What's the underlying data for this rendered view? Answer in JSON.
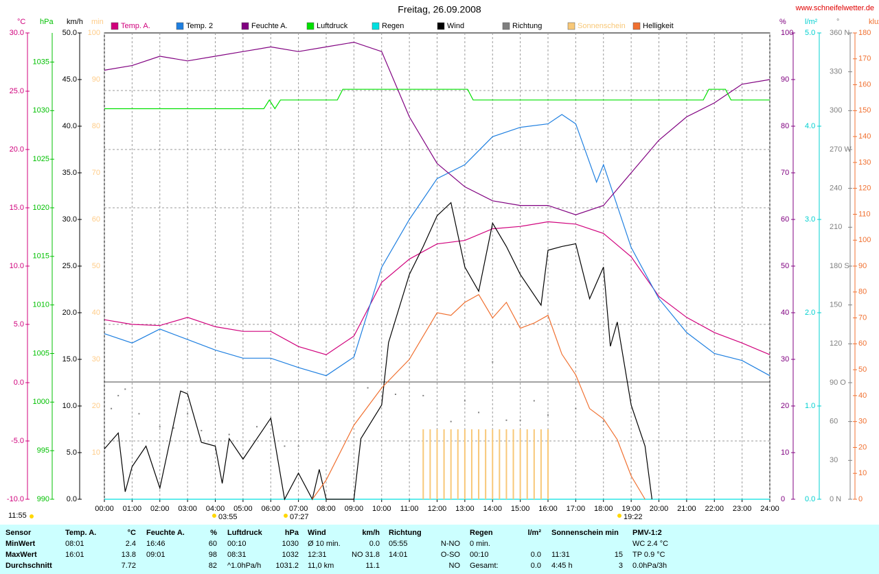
{
  "chart_data": {
    "type": "line",
    "title": "Freitag, 26.09.2008",
    "source": "www.schneifelwetter.de",
    "xlim": [
      0,
      24
    ],
    "xticks": [
      {
        "value": 0,
        "label": "00:00"
      },
      {
        "value": 1,
        "label": "01:00"
      },
      {
        "value": 2,
        "label": "02:00"
      },
      {
        "value": 3,
        "label": "03:00"
      },
      {
        "value": 4,
        "label": "04:00"
      },
      {
        "value": 5,
        "label": "05:00"
      },
      {
        "value": 6,
        "label": "06:00"
      },
      {
        "value": 7,
        "label": "07:00"
      },
      {
        "value": 8,
        "label": "08:00"
      },
      {
        "value": 9,
        "label": "09:00"
      },
      {
        "value": 10,
        "label": "10:00"
      },
      {
        "value": 11,
        "label": "11:00"
      },
      {
        "value": 12,
        "label": "12:00"
      },
      {
        "value": 13,
        "label": "13:00"
      },
      {
        "value": 14,
        "label": "14:00"
      },
      {
        "value": 15,
        "label": "15:00"
      },
      {
        "value": 16,
        "label": "16:00"
      },
      {
        "value": 17,
        "label": "17:00"
      },
      {
        "value": 18,
        "label": "18:00"
      },
      {
        "value": 19,
        "label": "19:00"
      },
      {
        "value": 20,
        "label": "20:00"
      },
      {
        "value": 21,
        "label": "21:00"
      },
      {
        "value": 22,
        "label": "22:00"
      },
      {
        "value": 23,
        "label": "23:00"
      },
      {
        "value": 24,
        "label": "24:00"
      }
    ],
    "axes": [
      {
        "unit": "°C",
        "color": "#d0007c",
        "lim": [
          -10,
          30
        ],
        "ticks": [
          {
            "value": -10,
            "label": "-10.0"
          },
          {
            "value": -5,
            "label": "-5.0"
          },
          {
            "value": 0,
            "label": "0.0"
          },
          {
            "value": 5,
            "label": "5.0"
          },
          {
            "value": 10,
            "label": "10.0"
          },
          {
            "value": 15,
            "label": "15.0"
          },
          {
            "value": 20,
            "label": "20.0"
          },
          {
            "value": 25,
            "label": "25.0"
          },
          {
            "value": 30,
            "label": "30.0"
          }
        ]
      },
      {
        "unit": "hPa",
        "color": "#00c000",
        "lim": [
          990,
          1038
        ],
        "ticks": [
          990,
          995,
          1000,
          1005,
          1010,
          1015,
          1020,
          1025,
          1030,
          1035
        ]
      },
      {
        "unit": "km/h",
        "color": "#000000",
        "lim": [
          0,
          50
        ],
        "ticks": [
          {
            "value": 0,
            "label": "0.0"
          },
          {
            "value": 5,
            "label": "5.0"
          },
          {
            "value": 10,
            "label": "10.0"
          },
          {
            "value": 15,
            "label": "15.0"
          },
          {
            "value": 20,
            "label": "20.0"
          },
          {
            "value": 25,
            "label": "25.0"
          },
          {
            "value": 30,
            "label": "30.0"
          },
          {
            "value": 35,
            "label": "35.0"
          },
          {
            "value": 40,
            "label": "40.0"
          },
          {
            "value": 45,
            "label": "45.0"
          },
          {
            "value": 50,
            "label": "50.0"
          }
        ]
      },
      {
        "unit": "min",
        "color": "#ffcc88",
        "lim": [
          0,
          100
        ],
        "ticks": [
          10,
          20,
          30,
          40,
          50,
          60,
          70,
          80,
          90,
          100
        ]
      },
      {
        "unit": "%",
        "color": "#800080",
        "lim": [
          0,
          100
        ],
        "ticks": [
          0,
          10,
          20,
          30,
          40,
          50,
          60,
          70,
          80,
          90,
          100
        ]
      },
      {
        "unit": "l/m²",
        "color": "#00d0d0",
        "lim": [
          0,
          5
        ],
        "ticks": [
          {
            "value": 0,
            "label": "0.0"
          },
          {
            "value": 1,
            "label": "1.0"
          },
          {
            "value": 2,
            "label": "2.0"
          },
          {
            "value": 3,
            "label": "3.0"
          },
          {
            "value": 4,
            "label": "4.0"
          },
          {
            "value": 5,
            "label": "5.0"
          }
        ]
      },
      {
        "unit": "°",
        "color": "#808080",
        "lim": [
          0,
          360
        ],
        "ticks": [
          {
            "value": 0,
            "label": "0 N"
          },
          30,
          60,
          {
            "value": 90,
            "label": "90 O"
          },
          120,
          150,
          {
            "value": 180,
            "label": "180 S"
          },
          210,
          240,
          {
            "value": 270,
            "label": "270 W"
          },
          300,
          330,
          {
            "value": 360,
            "label": "360 N"
          }
        ]
      },
      {
        "unit": "klux",
        "color": "#f07030",
        "lim": [
          0,
          180
        ],
        "ticks": [
          0,
          10,
          20,
          30,
          40,
          50,
          60,
          70,
          80,
          90,
          100,
          110,
          120,
          130,
          140,
          150,
          160,
          170,
          180
        ]
      }
    ],
    "series": [
      {
        "name": "Temp. A.",
        "color": "#d0007c",
        "axis": "°C",
        "style": "line",
        "x": [
          0,
          1,
          2,
          3,
          4,
          5,
          6,
          7,
          8,
          9,
          10,
          11,
          12,
          13,
          14,
          15,
          16,
          17,
          18,
          19,
          20,
          21,
          22,
          23,
          24
        ],
        "values": [
          5.4,
          5,
          4.9,
          5.6,
          4.8,
          4.4,
          4.4,
          3.1,
          2.4,
          4,
          8.6,
          10.6,
          11.9,
          12.2,
          13.2,
          13.4,
          13.8,
          13.6,
          12.8,
          10.8,
          7.4,
          5.6,
          4.3,
          3.4,
          2.4
        ]
      },
      {
        "name": "Temp. 2",
        "color": "#1e7fe0",
        "axis": "°C",
        "style": "line",
        "x": [
          0,
          1,
          2,
          3,
          4,
          5,
          6,
          7,
          8,
          9,
          10,
          11,
          12,
          13,
          14,
          15,
          16,
          16.5,
          17,
          17.75,
          18,
          19,
          20,
          21,
          22,
          23,
          24
        ],
        "values": [
          4.2,
          3.4,
          4.6,
          3.7,
          2.8,
          2.1,
          2.1,
          1.3,
          0.6,
          2.2,
          9.9,
          14,
          17.5,
          18.7,
          21.1,
          21.9,
          22.2,
          23,
          22.2,
          17.2,
          18.7,
          11.6,
          7.2,
          4.3,
          2.5,
          1.9,
          0.6
        ]
      },
      {
        "name": "Feuchte A.",
        "color": "#800080",
        "axis": "%",
        "style": "line",
        "x": [
          0,
          1,
          2,
          3,
          4,
          5,
          6,
          7,
          8,
          9,
          10,
          11,
          12,
          13,
          14,
          15,
          16,
          17,
          18,
          19,
          20,
          21,
          22,
          23,
          24
        ],
        "values": [
          92,
          93,
          95,
          94,
          95,
          96,
          97,
          96,
          97,
          98,
          96,
          82,
          72,
          67,
          64,
          63,
          63,
          61,
          63,
          70,
          77,
          82,
          85,
          89,
          90
        ]
      },
      {
        "name": "Luftdruck",
        "color": "#00e000",
        "axis": "hPa",
        "style": "line",
        "x": [
          0,
          5.75,
          5.95,
          6.15,
          6.35,
          8.4,
          8.6,
          13.1,
          13.3,
          21.6,
          21.8,
          22.4,
          22.6,
          24
        ],
        "values": [
          1030.2,
          1030.2,
          1031.1,
          1030.2,
          1031.1,
          1031.1,
          1032.2,
          1032.2,
          1031.1,
          1031.1,
          1032.2,
          1032.2,
          1031.1,
          1031.1
        ]
      },
      {
        "name": "Regen",
        "color": "#00e0e0",
        "axis": "l/m²",
        "style": "line",
        "x": [
          0,
          24
        ],
        "values": [
          0,
          0
        ]
      },
      {
        "name": "Wind",
        "color": "#000000",
        "axis": "km/h",
        "style": "line",
        "x": [
          0,
          0.5,
          0.75,
          1,
          1.5,
          2,
          2.75,
          3,
          3.5,
          4,
          4.25,
          4.5,
          5,
          6,
          6.5,
          7,
          7.5,
          7.75,
          8,
          9,
          9.25,
          10,
          10.25,
          11,
          11.5,
          12,
          12.5,
          13,
          13.5,
          14,
          14.5,
          15,
          15.75,
          16,
          16.5,
          17,
          17.5,
          18,
          18.25,
          18.5,
          19,
          19.5,
          19.75
        ],
        "values": [
          5.4,
          7.1,
          0.8,
          3.5,
          5.7,
          1.2,
          11.6,
          11.3,
          6.1,
          5.7,
          1.7,
          6.5,
          4.3,
          8.7,
          0,
          2.8,
          0,
          3.2,
          0,
          0,
          6.5,
          10.1,
          16.8,
          24.1,
          27.1,
          30.4,
          31.8,
          24.9,
          22.3,
          29.6,
          27.1,
          24.1,
          20.8,
          26.7,
          27.1,
          27.4,
          21.5,
          24.9,
          16.4,
          19,
          10.1,
          5.7,
          0
        ]
      },
      {
        "name": "Richtung",
        "color": "#808080",
        "axis": "°",
        "style": "dots",
        "x": [
          0.25,
          0.5,
          0.75,
          1.25,
          2,
          2.5,
          3,
          3.5,
          4.5,
          5.5,
          6.5,
          7,
          9.5,
          10.5,
          11.5,
          12.5,
          13,
          13.5,
          14,
          14.5,
          15,
          15.5,
          16,
          17,
          18
        ],
        "values": [
          70,
          80,
          85,
          66,
          56,
          55,
          66,
          53,
          50,
          56,
          41,
          41,
          86,
          81,
          80,
          60,
          76,
          67,
          106,
          61,
          61,
          76,
          65,
          70,
          60
        ]
      },
      {
        "name": "Sonnenschein",
        "color": "#f8c878",
        "axis": "min",
        "style": "bars",
        "x": [
          11.5,
          11.75,
          12,
          12.25,
          12.5,
          12.75,
          13,
          13.25,
          13.5,
          13.75,
          14,
          14.25,
          14.5,
          14.75,
          15,
          15.25,
          15.5,
          15.75,
          16
        ],
        "values": [
          15,
          15,
          15,
          15,
          15,
          15,
          15,
          15,
          15,
          15,
          15,
          15,
          15,
          15,
          15,
          15,
          15,
          15,
          15
        ]
      },
      {
        "name": "Helligkeit",
        "color": "#f07030",
        "axis": "klux",
        "style": "line",
        "x": [
          7.5,
          8,
          9,
          10,
          11,
          12,
          12.5,
          13,
          13.5,
          14,
          14.5,
          15,
          15.5,
          16,
          16.5,
          17,
          17.5,
          18,
          18.5,
          19,
          19.5
        ],
        "values": [
          0,
          7.4,
          28.6,
          43,
          54,
          72,
          71,
          76,
          79,
          70,
          76,
          66,
          68,
          71,
          56,
          48,
          35,
          31,
          23,
          9,
          0
        ]
      }
    ],
    "annotations": [
      "11:55",
      "03:55",
      "07:27",
      "19:22"
    ]
  },
  "table": {
    "header": [
      {
        "left": "Sensor"
      },
      {
        "left": "Temp. A.",
        "right": "°C"
      },
      {
        "left": "Feuchte A.",
        "right": "%"
      },
      {
        "left": "Luftdruck",
        "right": "hPa"
      },
      {
        "left": "Wind",
        "right": "km/h"
      },
      {
        "left": "Richtung"
      },
      {
        "left": "Regen",
        "right": "l/m²"
      },
      {
        "left": "Sonnenschein min"
      },
      {
        "left": "PMV-1:2"
      }
    ],
    "rows": [
      [
        {
          "left": "MinWert"
        },
        {
          "left": "08:01",
          "right": "2.4"
        },
        {
          "left": "16:46",
          "right": "60"
        },
        {
          "left": "00:10",
          "right": "1030"
        },
        {
          "left": "Ø 10 min.",
          "right": "0.0"
        },
        {
          "left": "05:55",
          "right": "N-NO"
        },
        {
          "left": "0 min."
        },
        {},
        {
          "left": "WC 2.4 °C"
        }
      ],
      [
        {
          "left": "MaxWert"
        },
        {
          "left": "16:01",
          "right": "13.8"
        },
        {
          "left": "09:01",
          "right": "98"
        },
        {
          "left": "08:31",
          "right": "1032"
        },
        {
          "left": "12:31",
          "right": "NO 31.8"
        },
        {
          "left": "14:01",
          "right": "O-SO"
        },
        {
          "left": "00:10",
          "right": "0.0"
        },
        {
          "left": "11:31",
          "right": "15"
        },
        {
          "left": "TP 0.9 °C"
        }
      ],
      [
        {
          "left": "Durchschnitt"
        },
        {
          "right": "7.72"
        },
        {
          "right": "82"
        },
        {
          "left": "^1.0hPa/h",
          "right": "1031.2"
        },
        {
          "left": "11,0 km",
          "right": "11.1"
        },
        {
          "right": "NO"
        },
        {
          "left": "Gesamt:",
          "right": "0.0"
        },
        {
          "left": "4:45 h",
          "right": "3"
        },
        {
          "left": "0.0hPa/3h"
        }
      ]
    ]
  }
}
